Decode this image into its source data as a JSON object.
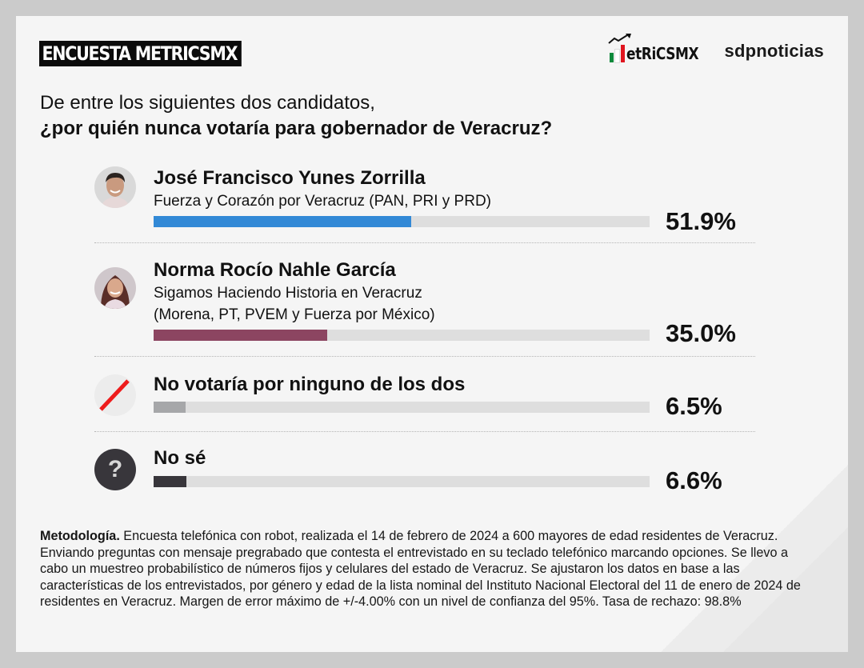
{
  "header": {
    "badge": "ENCUESTA METRICSMX",
    "logo_metrics": "etRiCSMX",
    "logo_sdp": "sdpnoticias",
    "flag_colors": [
      "#0f8a3c",
      "#ffffff",
      "#e0151f"
    ]
  },
  "question": {
    "line1": "De entre los siguientes dos candidatos,",
    "line2": "¿por quién nunca votaría para gobernador de Veracruz?"
  },
  "options": [
    {
      "name": "José Francisco Yunes Zorrilla",
      "coalition_line1": "Fuerza y Corazón por Veracruz (PAN, PRI y PRD)",
      "coalition_line2": "",
      "value": 51.9,
      "label": "51.9%",
      "color": "#3289d6",
      "icon": "candidate-photo"
    },
    {
      "name": "Norma Rocío Nahle García",
      "coalition_line1": "Sigamos Haciendo Historia en Veracruz",
      "coalition_line2": "(Morena, PT, PVEM y Fuerza por México)",
      "value": 35.0,
      "label": "35.0%",
      "color": "#8c4561",
      "icon": "candidate-photo"
    },
    {
      "name": "No votaría por ninguno de los dos",
      "value": 6.5,
      "label": "6.5%",
      "color": "#a6a7a9",
      "icon": "slash-icon"
    },
    {
      "name": "No sé",
      "value": 6.6,
      "label": "6.6%",
      "color": "#38363b",
      "icon": "question-icon",
      "icon_glyph": "?"
    }
  ],
  "methodology": {
    "label": "Metodología.",
    "text": " Encuesta telefónica con robot, realizada el 14 de febrero de 2024 a 600 mayores de edad residentes de Veracruz. Enviando preguntas con mensaje pregrabado que contesta el entrevistado en su teclado telefónico marcando opciones. Se llevo a cabo un muestreo probabilístico de números fijos y celulares del estado de Veracruz. Se ajustaron los datos en base a las características de los entrevistados, por género y edad de la lista nominal del Instituto Nacional Electoral del 11 de enero de 2024 de residentes en Veracruz. Margen de error máximo de +/-4.00% con un nivel de confianza del 95%. Tasa de rechazo: 98.8%"
  },
  "chart_data": {
    "type": "bar",
    "orientation": "horizontal",
    "title": "¿por quién nunca votaría para gobernador de Veracruz?",
    "subtitle": "De entre los siguientes dos candidatos,",
    "categories": [
      "José Francisco Yunes Zorrilla",
      "Norma Rocío Nahle García",
      "No votaría por ninguno de los dos",
      "No sé"
    ],
    "values": [
      51.9,
      35.0,
      6.5,
      6.6
    ],
    "colors": [
      "#3289d6",
      "#8c4561",
      "#a6a7a9",
      "#38363b"
    ],
    "xlabel": "",
    "ylabel": "",
    "xlim": [
      0,
      100
    ],
    "unit": "%",
    "grid": false,
    "legend": "none"
  }
}
